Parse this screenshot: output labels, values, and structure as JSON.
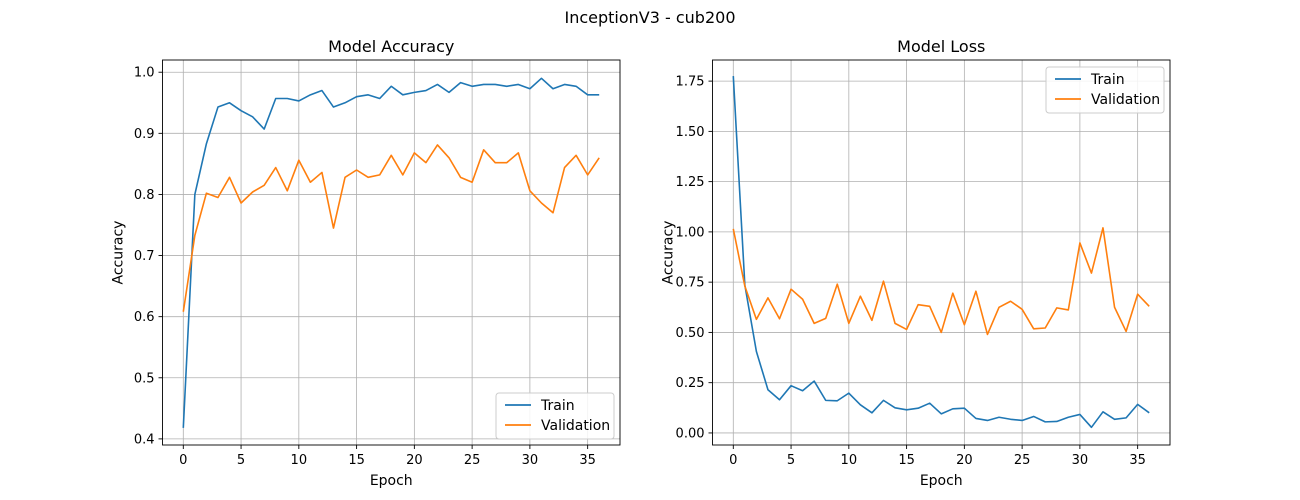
{
  "figure": {
    "suptitle": "InceptionV3 - cub200"
  },
  "colors": {
    "train": "#1f77b4",
    "validation": "#ff7f0e",
    "grid": "#b0b0b0"
  },
  "chart_data": [
    {
      "type": "line",
      "title": "Model Accuracy",
      "xlabel": "Epoch",
      "ylabel": "Accuracy",
      "xlim": [
        -1.8,
        37.8
      ],
      "ylim": [
        0.39,
        1.02
      ],
      "xticks": [
        0,
        5,
        10,
        15,
        20,
        25,
        30,
        35
      ],
      "yticks": [
        0.4,
        0.5,
        0.6,
        0.7,
        0.8,
        0.9,
        1.0
      ],
      "ytick_labels": [
        "0.4",
        "0.5",
        "0.6",
        "0.7",
        "0.8",
        "0.9",
        "1.0"
      ],
      "grid": true,
      "legend_position": "bottom-right",
      "x": [
        0,
        1,
        2,
        3,
        4,
        5,
        6,
        7,
        8,
        9,
        10,
        11,
        12,
        13,
        14,
        15,
        16,
        17,
        18,
        19,
        20,
        21,
        22,
        23,
        24,
        25,
        26,
        27,
        28,
        29,
        30,
        31,
        32,
        33,
        34,
        35,
        36
      ],
      "series": [
        {
          "name": "Train",
          "color": "#1f77b4",
          "values": [
            0.418,
            0.8,
            0.883,
            0.943,
            0.95,
            0.937,
            0.927,
            0.907,
            0.957,
            0.957,
            0.953,
            0.963,
            0.97,
            0.943,
            0.95,
            0.96,
            0.963,
            0.957,
            0.977,
            0.963,
            0.967,
            0.97,
            0.98,
            0.967,
            0.983,
            0.977,
            0.98,
            0.98,
            0.977,
            0.98,
            0.973,
            0.99,
            0.973,
            0.98,
            0.977,
            0.963,
            0.963
          ]
        },
        {
          "name": "Validation",
          "color": "#ff7f0e",
          "values": [
            0.608,
            0.733,
            0.802,
            0.795,
            0.828,
            0.786,
            0.804,
            0.815,
            0.844,
            0.806,
            0.856,
            0.82,
            0.836,
            0.745,
            0.828,
            0.84,
            0.828,
            0.832,
            0.864,
            0.832,
            0.868,
            0.852,
            0.881,
            0.86,
            0.828,
            0.82,
            0.873,
            0.852,
            0.852,
            0.868,
            0.806,
            0.786,
            0.77,
            0.844,
            0.864,
            0.832,
            0.86
          ]
        }
      ]
    },
    {
      "type": "line",
      "title": "Model Loss",
      "xlabel": "Epoch",
      "ylabel": "Accuracy",
      "xlim": [
        -1.8,
        37.8
      ],
      "ylim": [
        -0.06,
        1.855
      ],
      "xticks": [
        0,
        5,
        10,
        15,
        20,
        25,
        30,
        35
      ],
      "yticks": [
        0,
        0.25,
        0.5,
        0.75,
        1.0,
        1.25,
        1.5,
        1.75
      ],
      "ytick_labels": [
        "0.00",
        "0.25",
        "0.50",
        "0.75",
        "1.00",
        "1.25",
        "1.50",
        "1.75"
      ],
      "grid": true,
      "legend_position": "top-right",
      "x": [
        0,
        1,
        2,
        3,
        4,
        5,
        6,
        7,
        8,
        9,
        10,
        11,
        12,
        13,
        14,
        15,
        16,
        17,
        18,
        19,
        20,
        21,
        22,
        23,
        24,
        25,
        26,
        27,
        28,
        29,
        30,
        31,
        32,
        33,
        34,
        35,
        36
      ],
      "series": [
        {
          "name": "Train",
          "color": "#1f77b4",
          "values": [
            1.775,
            0.735,
            0.405,
            0.215,
            0.165,
            0.235,
            0.21,
            0.258,
            0.162,
            0.16,
            0.198,
            0.14,
            0.1,
            0.162,
            0.125,
            0.115,
            0.123,
            0.148,
            0.095,
            0.12,
            0.123,
            0.072,
            0.062,
            0.078,
            0.068,
            0.062,
            0.082,
            0.055,
            0.057,
            0.078,
            0.092,
            0.028,
            0.105,
            0.068,
            0.075,
            0.142,
            0.1
          ]
        },
        {
          "name": "Validation",
          "color": "#ff7f0e",
          "values": [
            1.015,
            0.73,
            0.565,
            0.672,
            0.568,
            0.715,
            0.665,
            0.545,
            0.57,
            0.74,
            0.545,
            0.68,
            0.56,
            0.755,
            0.545,
            0.515,
            0.638,
            0.63,
            0.5,
            0.695,
            0.538,
            0.705,
            0.49,
            0.625,
            0.655,
            0.615,
            0.518,
            0.522,
            0.622,
            0.612,
            0.945,
            0.795,
            1.02,
            0.625,
            0.505,
            0.69,
            0.63
          ]
        }
      ]
    }
  ]
}
